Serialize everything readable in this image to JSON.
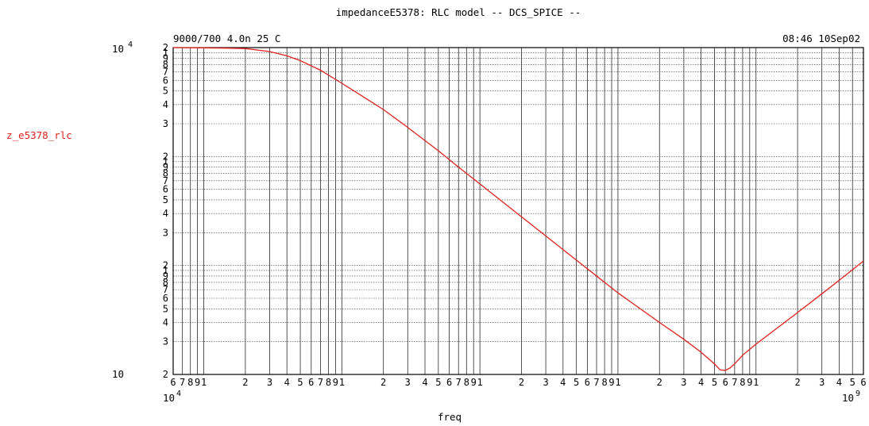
{
  "chart_data": {
    "type": "line",
    "title": "impedanceE5378:  RLC model   -- DCS_SPICE --",
    "header_left": "9000/700 4.0n    25 C",
    "header_right": "08:46   10Sep02",
    "xlabel": "freq",
    "ylabel": "z_e5378_rlc",
    "x_scale": "log",
    "y_scale": "log",
    "xlim": [
      60000,
      6000000000
    ],
    "ylim": [
      10,
      10000
    ],
    "grid": true,
    "line_color": "#e0201b",
    "x_end_labels": [
      {
        "base": "10",
        "exp": "4"
      },
      {
        "base": "10",
        "exp": "9"
      }
    ],
    "y_end_labels": [
      {
        "base": "10",
        "exp": "4"
      },
      {
        "base": "10",
        "exp": ""
      }
    ],
    "x_minor_tick_labels": [
      "6",
      "7",
      "8",
      "9",
      "1",
      "2",
      "3",
      "4",
      "5",
      "6",
      "7",
      "8",
      "9",
      "1",
      "2",
      "3",
      "4",
      "5",
      "6",
      "7",
      "8",
      "9",
      "1",
      "2",
      "3",
      "4",
      "5",
      "6",
      "7",
      "8",
      "9",
      "1",
      "2",
      "3",
      "4",
      "5",
      "6",
      "7",
      "8",
      "9",
      "1",
      "2",
      "3",
      "4",
      "5",
      "6"
    ],
    "y_minor_tick_labels": [
      "2",
      "1",
      "9",
      "8",
      "7",
      "6",
      "5",
      "4",
      "3",
      "2",
      "1",
      "9",
      "8",
      "7",
      "6",
      "5",
      "4",
      "3",
      "2",
      "1",
      "9",
      "8",
      "7",
      "6",
      "5",
      "4",
      "3",
      "2",
      "1"
    ],
    "series": [
      {
        "points": [
          [
            60000,
            10000
          ],
          [
            100000,
            9950
          ],
          [
            150000,
            9880
          ],
          [
            200000,
            9800
          ],
          [
            300000,
            9200
          ],
          [
            400000,
            8400
          ],
          [
            500000,
            7600
          ],
          [
            700000,
            6200
          ],
          [
            1000000,
            4700
          ],
          [
            1500000,
            3400
          ],
          [
            2000000,
            2700
          ],
          [
            3000000,
            1850
          ],
          [
            5000000,
            1130
          ],
          [
            7000000,
            800
          ],
          [
            10000000,
            560
          ],
          [
            20000000,
            280
          ],
          [
            50000000,
            112
          ],
          [
            100000000,
            56
          ],
          [
            200000000,
            30
          ],
          [
            300000000,
            21
          ],
          [
            400000000,
            16
          ],
          [
            500000000,
            12.5
          ],
          [
            550000000,
            11
          ],
          [
            600000000,
            10.9
          ],
          [
            650000000,
            11.5
          ],
          [
            700000000,
            12.5
          ],
          [
            800000000,
            15
          ],
          [
            1000000000,
            19
          ],
          [
            2000000000,
            37
          ],
          [
            3000000000,
            55
          ],
          [
            4000000000,
            73
          ],
          [
            6000000000,
            110
          ]
        ]
      }
    ]
  }
}
